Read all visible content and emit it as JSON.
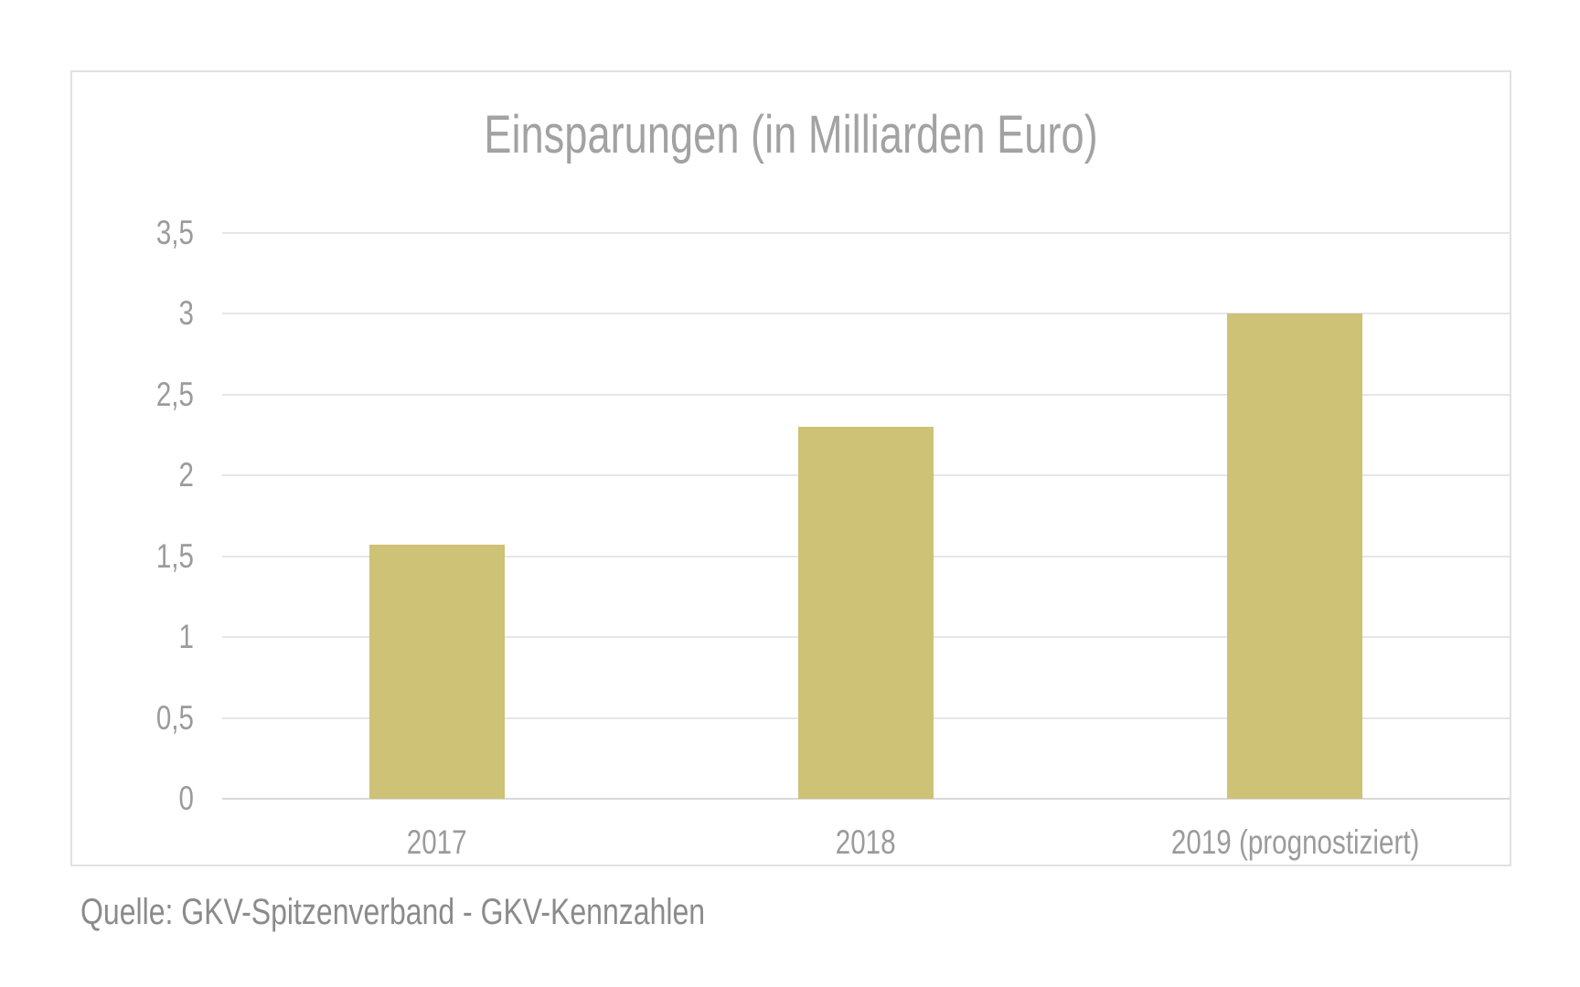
{
  "chart": {
    "colors": {
      "bar": "#cdc276",
      "gridline": "#e6e6e6",
      "baseline": "#d8d8d8",
      "panel_border": "#e1e1e1",
      "title_text": "#a2a2a2",
      "axis_text": "#9b9b9b",
      "source_text": "#8b8b8b",
      "background": "#ffffff"
    }
  },
  "chart_data": {
    "type": "bar",
    "title": "Einsparungen (in Milliarden Euro)",
    "categories": [
      "2017",
      "2018",
      "2019 (prognostiziert)"
    ],
    "values": [
      1.57,
      2.3,
      3.0
    ],
    "xlabel": "",
    "ylabel": "",
    "ylim": [
      0,
      3.5
    ],
    "yticks": [
      0,
      0.5,
      1,
      1.5,
      2,
      2.5,
      3,
      3.5
    ],
    "ytick_labels": [
      "0",
      "0,5",
      "1",
      "1,5",
      "2",
      "2,5",
      "3",
      "3,5"
    ],
    "grid": true,
    "legend": false,
    "decimal_style": "comma",
    "source": "Quelle: GKV-Spitzenverband - GKV-Kennzahlen"
  }
}
